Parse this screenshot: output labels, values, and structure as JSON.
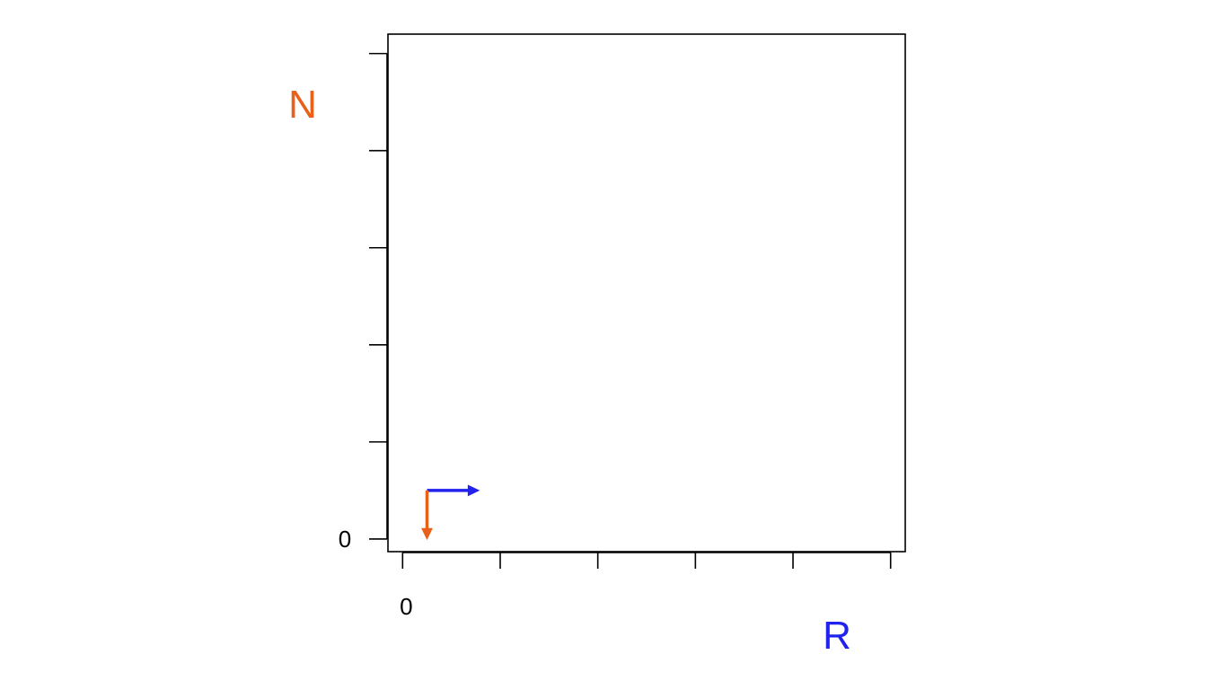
{
  "chart_data": {
    "type": "scatter",
    "title": "",
    "xlabel": "R",
    "ylabel": "N",
    "x_ticks": [
      0,
      1,
      2,
      3,
      4,
      5
    ],
    "y_ticks": [
      0,
      1,
      2,
      3,
      4,
      5
    ],
    "x_tick_labels": [
      "0",
      "",
      "",
      "",
      "",
      ""
    ],
    "y_tick_labels": [
      "0",
      "",
      "",
      "",
      "",
      ""
    ],
    "xlim": [
      -0.15,
      5.15
    ],
    "ylim": [
      -0.13,
      5.2
    ],
    "grid": false,
    "colors": {
      "R": "#2222ee",
      "N": "#e8601a",
      "axis": "#000000"
    },
    "vectors": [
      {
        "name": "R",
        "from": [
          0.25,
          0.5
        ],
        "to": [
          0.78,
          0.5
        ],
        "color": "#2222ee"
      },
      {
        "name": "N",
        "from": [
          0.25,
          0.5
        ],
        "to": [
          0.25,
          0.0
        ],
        "color": "#e8601a"
      }
    ]
  }
}
